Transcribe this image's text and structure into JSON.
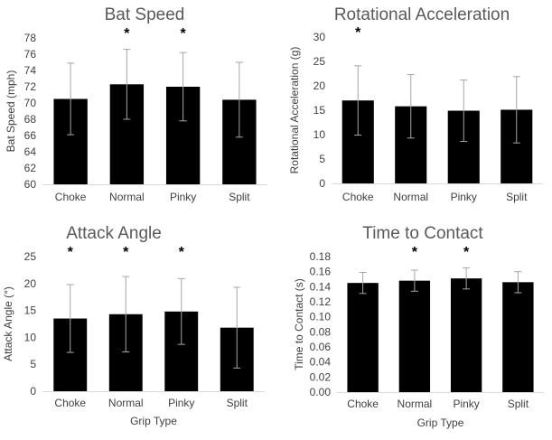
{
  "chart_data": [
    {
      "type": "bar",
      "title": "Bat Speed",
      "xlabel": "",
      "ylabel": "Bat Speed (mph)",
      "categories": [
        "Choke",
        "Normal",
        "Pinky",
        "Split"
      ],
      "values": [
        70.5,
        72.3,
        72.0,
        70.4
      ],
      "error": [
        4.4,
        4.3,
        4.2,
        4.6
      ],
      "significant": [
        false,
        true,
        true,
        false
      ],
      "ylim": [
        60,
        78
      ],
      "yticks": [
        "60",
        "62",
        "64",
        "66",
        "68",
        "70",
        "72",
        "74",
        "76",
        "78"
      ],
      "yticks_num": [
        60,
        62,
        64,
        66,
        68,
        70,
        72,
        74,
        76,
        78
      ],
      "sig_marker": "*",
      "grid": false,
      "bar_color": "#000000",
      "error_color": "#a6a6a6"
    },
    {
      "type": "bar",
      "title": "Rotational Acceleration",
      "xlabel": "",
      "ylabel": "Rotational Acceleration (g)",
      "categories": [
        "Choke",
        "Normal",
        "Pinky",
        "Split"
      ],
      "values": [
        17.0,
        15.8,
        14.9,
        15.1
      ],
      "error": [
        7.1,
        6.5,
        6.3,
        6.8
      ],
      "significant": [
        true,
        false,
        false,
        false
      ],
      "ylim": [
        0,
        30
      ],
      "yticks": [
        "0",
        "5",
        "10",
        "15",
        "20",
        "25",
        "30"
      ],
      "yticks_num": [
        0,
        5,
        10,
        15,
        20,
        25,
        30
      ],
      "sig_marker": "*",
      "grid": false,
      "bar_color": "#000000",
      "error_color": "#a6a6a6"
    },
    {
      "type": "bar",
      "title": "Attack Angle",
      "xlabel": "Grip Type",
      "ylabel": "Attack Angle (°)",
      "categories": [
        "Choke",
        "Normal",
        "Pinky",
        "Split"
      ],
      "values": [
        13.5,
        14.3,
        14.8,
        11.8
      ],
      "error": [
        6.3,
        7.0,
        6.1,
        7.5
      ],
      "significant": [
        true,
        true,
        true,
        false
      ],
      "ylim": [
        0,
        25
      ],
      "yticks": [
        "0",
        "5",
        "10",
        "15",
        "20",
        "25"
      ],
      "yticks_num": [
        0,
        5,
        10,
        15,
        20,
        25
      ],
      "sig_marker": "*",
      "grid": false,
      "bar_color": "#000000",
      "error_color": "#a6a6a6"
    },
    {
      "type": "bar",
      "title": "Time to Contact",
      "xlabel": "Grip Type",
      "ylabel": "Time to Contact (s)",
      "categories": [
        "Choke",
        "Normal",
        "Pinky",
        "Split"
      ],
      "values": [
        0.145,
        0.148,
        0.151,
        0.146
      ],
      "error": [
        0.014,
        0.014,
        0.014,
        0.014
      ],
      "significant": [
        false,
        true,
        true,
        false
      ],
      "ylim": [
        0,
        0.18
      ],
      "yticks": [
        "0.00",
        "0.02",
        "0.04",
        "0.06",
        "0.08",
        "0.10",
        "0.12",
        "0.14",
        "0.16",
        "0.18"
      ],
      "yticks_num": [
        0,
        0.02,
        0.04,
        0.06,
        0.08,
        0.1,
        0.12,
        0.14,
        0.16,
        0.18
      ],
      "sig_marker": "*",
      "grid": false,
      "bar_color": "#000000",
      "error_color": "#a6a6a6"
    }
  ]
}
